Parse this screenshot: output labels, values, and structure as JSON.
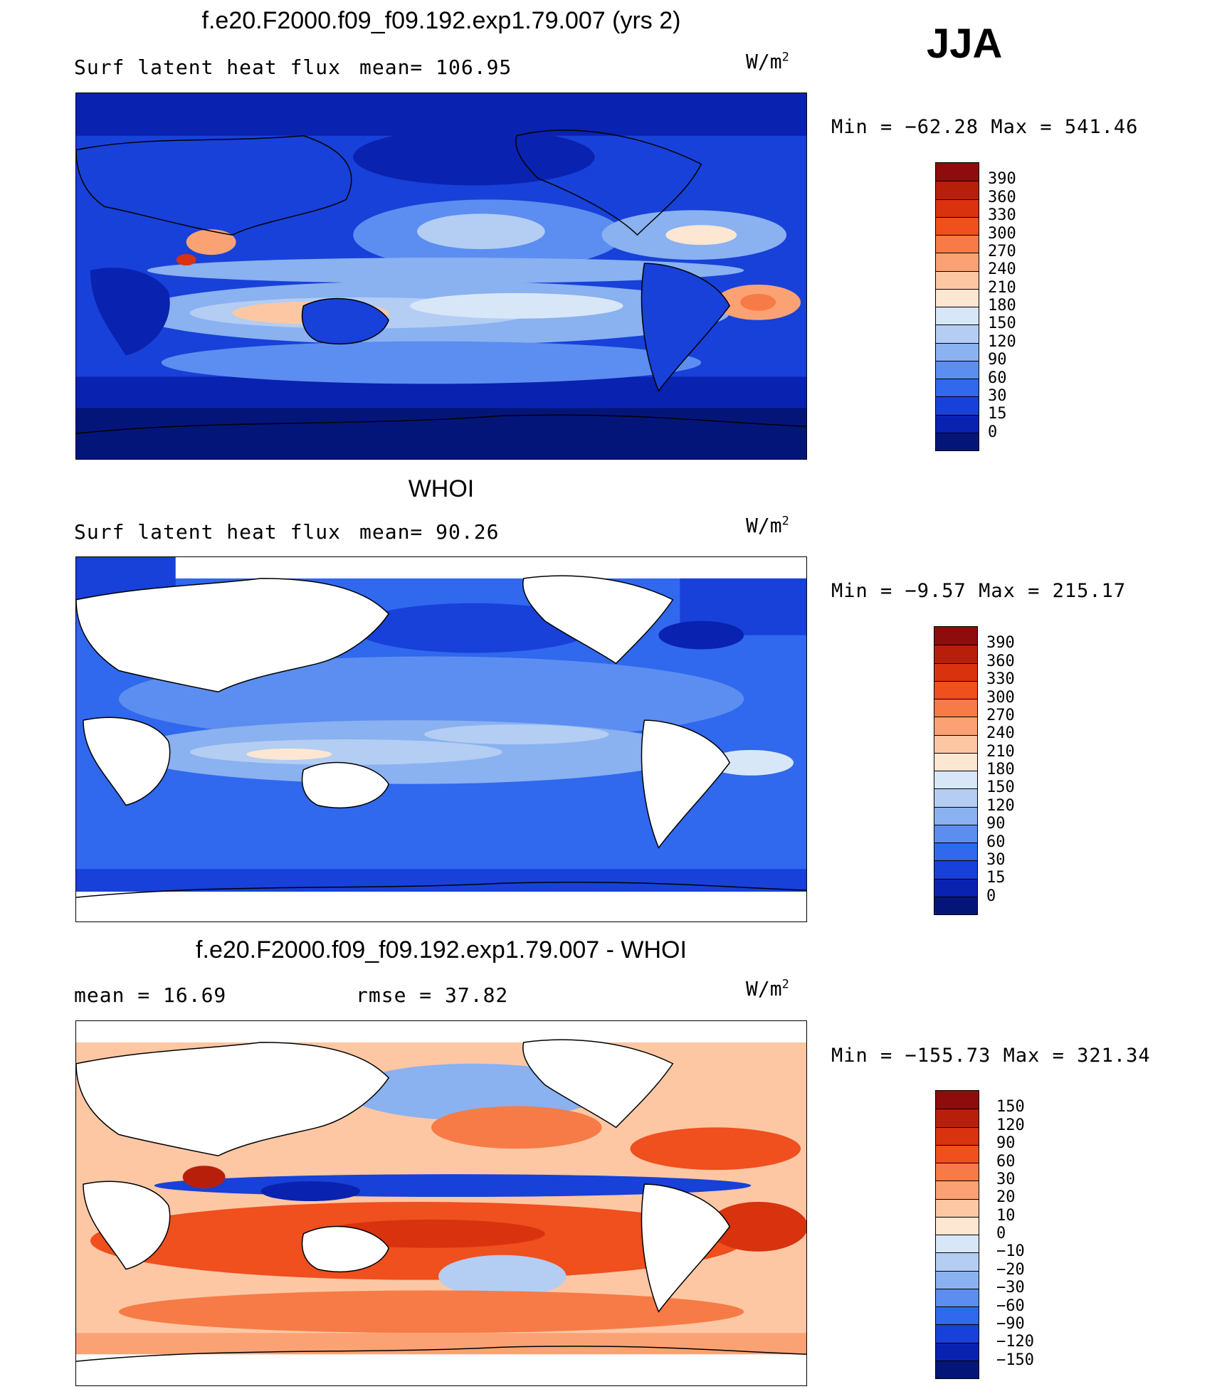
{
  "season": "JJA",
  "units": "W/m",
  "units_power": "2",
  "panels": [
    {
      "title": "f.e20.F2000.f09_f09.192.exp1.79.007 (yrs 2)",
      "left_label": "Surf latent heat flux",
      "right_label": "mean=  106.95",
      "minmax": "Min = −62.28 Max = 541.46",
      "palette": "model"
    },
    {
      "title": "WHOI",
      "left_label": "Surf latent heat flux",
      "right_label": "mean=  90.26",
      "minmax": "Min =  −9.57 Max = 215.17",
      "palette": "obs"
    },
    {
      "title": "f.e20.F2000.f09_f09.192.exp1.79.007 - WHOI",
      "left_label": "mean =   16.69",
      "right_label": "rmse =   37.82",
      "minmax": "Min = −155.73 Max = 321.34",
      "palette": "diff"
    }
  ],
  "chart_data": [
    {
      "type": "heatmap",
      "title": "f.e20.F2000.f09_f09.192.exp1.79.007 (yrs 2)",
      "variable": "Surf latent heat flux",
      "mean": 106.95,
      "min": -62.28,
      "max": 541.46,
      "colorbar_levels": [
        "390",
        "360",
        "330",
        "300",
        "270",
        "240",
        "210",
        "180",
        "150",
        "120",
        "90",
        "60",
        "30",
        "15",
        "0"
      ],
      "colorbar_colors": [
        "#8e0c0c",
        "#b81f0b",
        "#d9320e",
        "#f04f1e",
        "#f77b46",
        "#fba275",
        "#fdc7a4",
        "#fde6d2",
        "#d8e7f7",
        "#b4cdf3",
        "#8ab1f0",
        "#5b8ef0",
        "#3068ee",
        "#1741d8",
        "#0a22b0",
        "#04157a"
      ]
    },
    {
      "type": "heatmap",
      "title": "WHOI",
      "variable": "Surf latent heat flux",
      "mean": 90.26,
      "min": -9.57,
      "max": 215.17,
      "colorbar_levels": [
        "390",
        "360",
        "330",
        "300",
        "270",
        "240",
        "210",
        "180",
        "150",
        "120",
        "90",
        "60",
        "30",
        "15",
        "0"
      ],
      "colorbar_colors": [
        "#8e0c0c",
        "#b81f0b",
        "#d9320e",
        "#f04f1e",
        "#f77b46",
        "#fba275",
        "#fdc7a4",
        "#fde6d2",
        "#d8e7f7",
        "#b4cdf3",
        "#8ab1f0",
        "#5b8ef0",
        "#3068ee",
        "#1741d8",
        "#0a22b0",
        "#04157a"
      ]
    },
    {
      "type": "heatmap",
      "title": "f.e20.F2000.f09_f09.192.exp1.79.007 - WHOI",
      "mean": 16.69,
      "rmse": 37.82,
      "min": -155.73,
      "max": 321.34,
      "colorbar_levels": [
        "150",
        "120",
        "90",
        "60",
        "30",
        "20",
        "10",
        "0",
        "−10",
        "−20",
        "−30",
        "−60",
        "−90",
        "−120",
        "−150"
      ],
      "colorbar_colors": [
        "#8e0c0c",
        "#b81f0b",
        "#d9320e",
        "#f04f1e",
        "#f77b46",
        "#fba275",
        "#fdc7a4",
        "#fde6d2",
        "#d8e7f7",
        "#b4cdf3",
        "#8ab1f0",
        "#5b8ef0",
        "#3068ee",
        "#1741d8",
        "#0a22b0",
        "#04157a"
      ]
    }
  ]
}
